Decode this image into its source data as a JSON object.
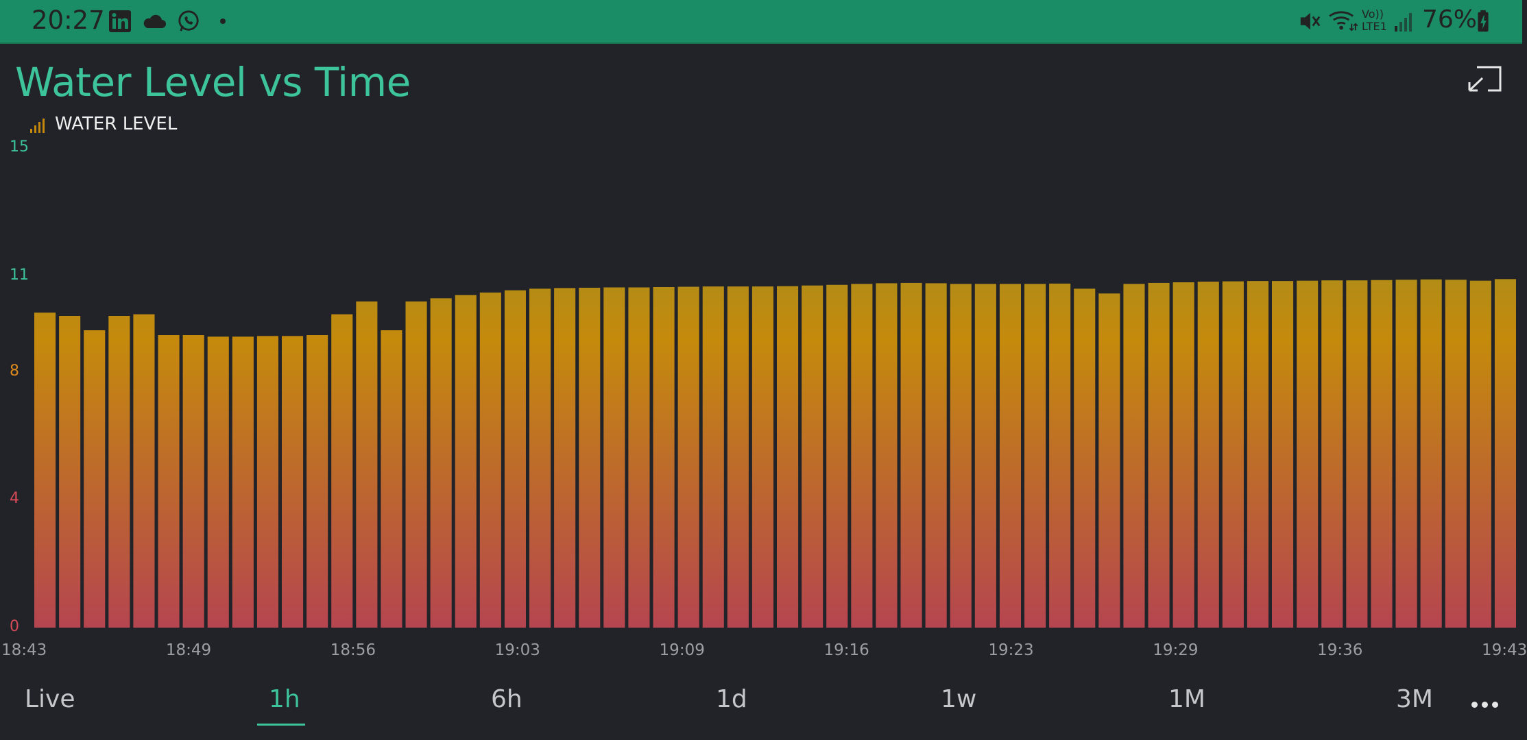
{
  "status_bar": {
    "time": "20:27",
    "left_icons": [
      "linkedin-icon",
      "cloud-icon",
      "whatsapp-icon",
      "dot-icon"
    ],
    "right_icons": [
      "mute-icon",
      "wifi-icon",
      "volte-icon",
      "signal-icon",
      "battery-charging-icon"
    ],
    "volte_line1": "Vo))",
    "volte_line2": "LTE1",
    "battery": "76%"
  },
  "widget": {
    "title": "Water Level vs Time",
    "fullscreen_icon": "collapse-icon"
  },
  "colors": {
    "accent": "#3dc49b",
    "bar_top": "#8a8f2e",
    "bar_mid": "#c58a0c",
    "bar_bottom": "#b54550",
    "tick_green": "#3dc49b",
    "tick_orange": "#e08a1c",
    "tick_red": "#d94a58"
  },
  "chart_data": {
    "type": "bar",
    "series": [
      {
        "name": "WATER LEVEL",
        "values": [
          9.85,
          9.75,
          9.3,
          9.75,
          9.8,
          9.15,
          9.15,
          9.1,
          9.1,
          9.12,
          9.12,
          9.15,
          9.8,
          10.2,
          9.3,
          10.2,
          10.3,
          10.4,
          10.48,
          10.55,
          10.6,
          10.62,
          10.63,
          10.64,
          10.64,
          10.65,
          10.66,
          10.67,
          10.67,
          10.67,
          10.68,
          10.7,
          10.72,
          10.75,
          10.77,
          10.78,
          10.77,
          10.75,
          10.75,
          10.75,
          10.75,
          10.76,
          10.6,
          10.45,
          10.75,
          10.78,
          10.8,
          10.82,
          10.83,
          10.84,
          10.84,
          10.85,
          10.86,
          10.86,
          10.87,
          10.88,
          10.89,
          10.88,
          10.85,
          10.9
        ]
      }
    ],
    "x_ticks": [
      "18:43",
      "18:49",
      "18:56",
      "19:03",
      "19:09",
      "19:16",
      "19:23",
      "19:29",
      "19:36",
      "19:43"
    ],
    "y_ticks": [
      "15",
      "11",
      "8",
      "4",
      "0"
    ],
    "y_tick_values": [
      15,
      11,
      8,
      4,
      0
    ],
    "ylim": [
      0,
      15
    ],
    "legend_placement": "top-left",
    "grid": false
  },
  "range_tabs": [
    {
      "label": "Live",
      "active": false
    },
    {
      "label": "1h",
      "active": true
    },
    {
      "label": "6h",
      "active": false
    },
    {
      "label": "1d",
      "active": false
    },
    {
      "label": "1w",
      "active": false
    },
    {
      "label": "1M",
      "active": false
    },
    {
      "label": "3M",
      "active": false
    }
  ],
  "more_icon": "more-horizontal-icon"
}
